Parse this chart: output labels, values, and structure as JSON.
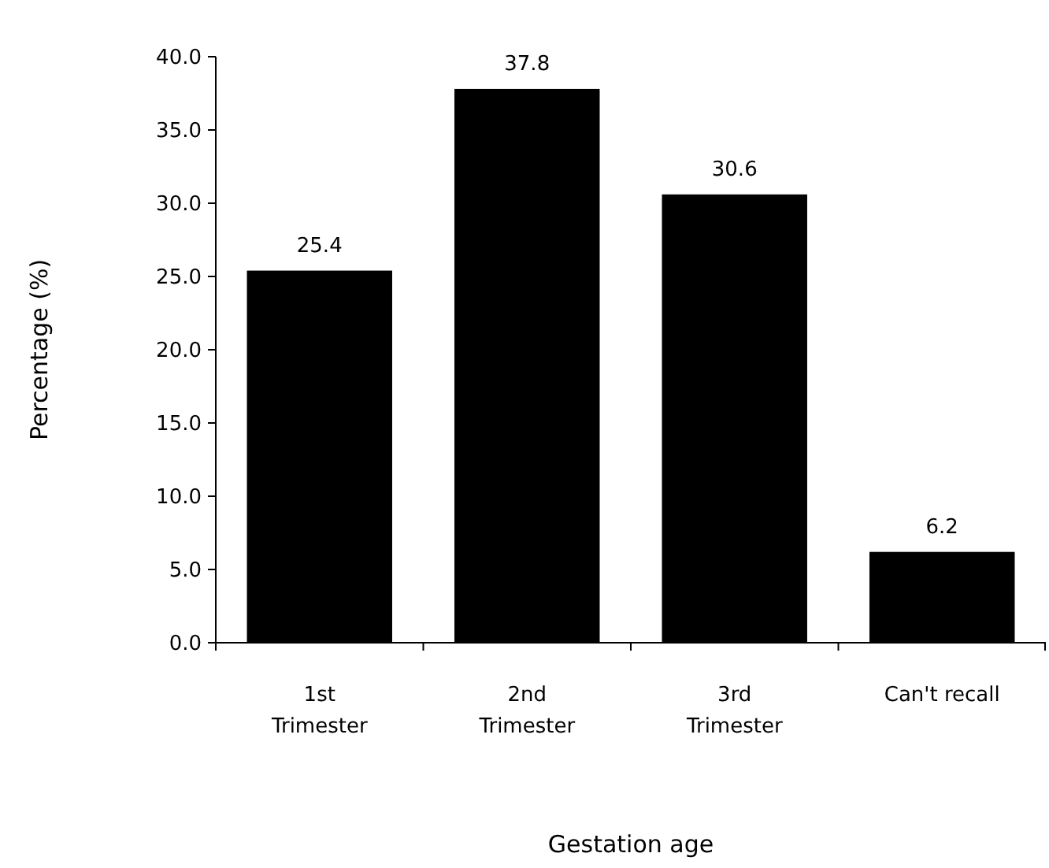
{
  "chart_data": {
    "type": "bar",
    "xlabel": "Gestation age",
    "ylabel": "Percentage (%)",
    "categories": [
      "1st Trimester",
      "2nd Trimester",
      "3rd Trimester",
      "Can't recall"
    ],
    "values": [
      25.4,
      37.8,
      30.6,
      6.2
    ],
    "color": "#000000",
    "ylim": [
      0,
      40
    ],
    "yticks": [
      {
        "value": 0,
        "label": "0.0"
      },
      {
        "value": 5,
        "label": "5.0"
      },
      {
        "value": 10,
        "label": "10.0"
      },
      {
        "value": 15,
        "label": "15.0"
      },
      {
        "value": 20,
        "label": "20.0"
      },
      {
        "value": 25,
        "label": "25.0"
      },
      {
        "value": 30,
        "label": "30.0"
      },
      {
        "value": 35,
        "label": "35.0"
      },
      {
        "value": 40,
        "label": "40.0"
      }
    ],
    "data_labels": true,
    "grid": false
  }
}
